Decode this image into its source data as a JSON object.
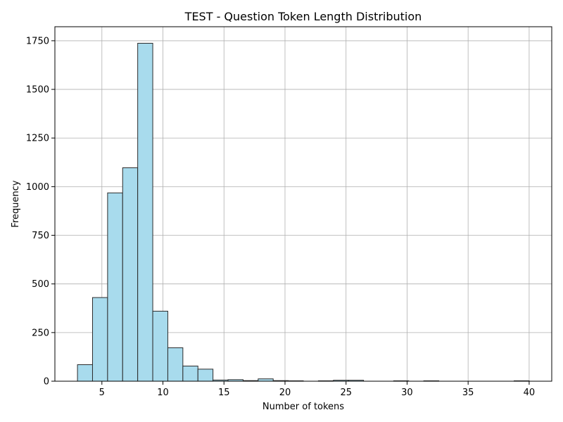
{
  "chart_data": {
    "type": "bar",
    "title": "TEST - Question Token Length Distribution",
    "xlabel": "Number of tokens",
    "ylabel": "Frequency",
    "xlim": [
      1.15,
      41.85
    ],
    "ylim": [
      0,
      1822
    ],
    "xticks": [
      5,
      10,
      15,
      20,
      25,
      30,
      35,
      40
    ],
    "yticks": [
      0,
      250,
      500,
      750,
      1000,
      1250,
      1500,
      1750
    ],
    "grid": true,
    "bin_edges": [
      3.0,
      4.233,
      5.467,
      6.7,
      7.933,
      9.167,
      10.4,
      11.633,
      12.867,
      14.1,
      15.333,
      16.567,
      17.8,
      19.033,
      20.267,
      21.5,
      22.733,
      23.967,
      25.2,
      26.433,
      27.667,
      28.9,
      30.133,
      31.367,
      32.6,
      33.833,
      35.067,
      36.3,
      37.533,
      38.767,
      40.0
    ],
    "values": [
      85,
      430,
      968,
      1097,
      1737,
      360,
      172,
      78,
      62,
      6,
      8,
      3,
      12,
      3,
      2,
      0,
      2,
      5,
      5,
      0,
      0,
      2,
      0,
      2,
      0,
      0,
      0,
      0,
      0,
      2
    ]
  }
}
